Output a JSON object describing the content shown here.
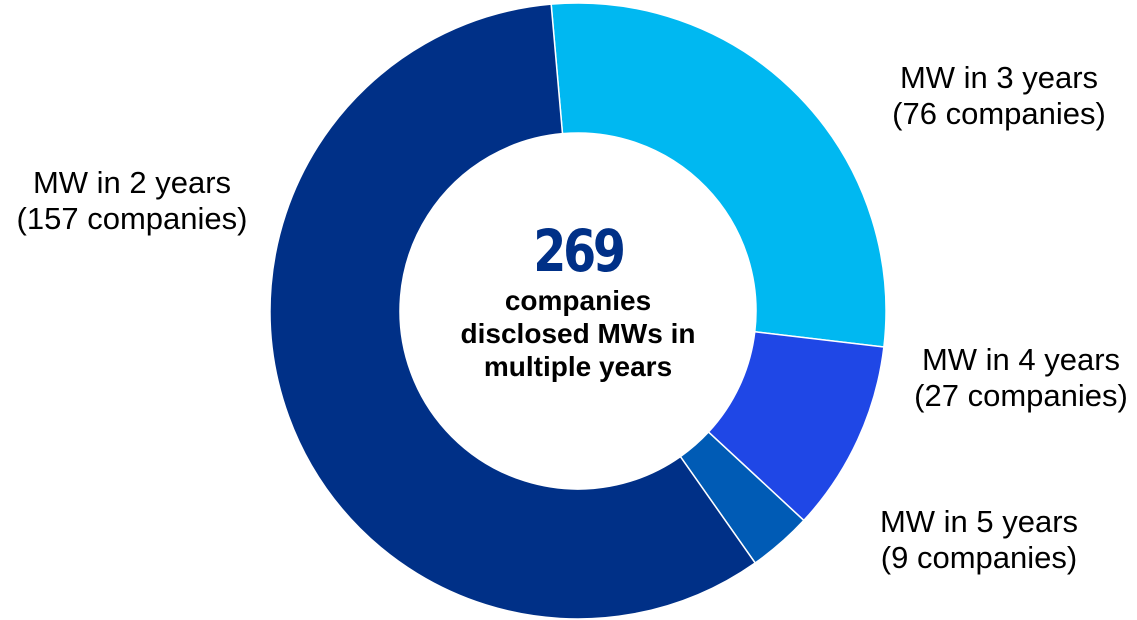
{
  "chart_data": {
    "type": "pie",
    "donut": true,
    "categories": [
      "MW in 3 years",
      "MW in 4 years",
      "MW in 5 years",
      "MW in 2 years"
    ],
    "values": [
      76,
      27,
      9,
      157
    ],
    "value_labels": [
      "(76 companies)",
      "(27 companies)",
      "(9 companies)",
      "(157 companies)"
    ],
    "colors": [
      "#00B8F1",
      "#1F47E6",
      "#005BB5",
      "#003087"
    ],
    "total_value": "269",
    "total_caption": "companies\ndisclosed MWs in\nmultiple years",
    "total_color": "#003087"
  }
}
